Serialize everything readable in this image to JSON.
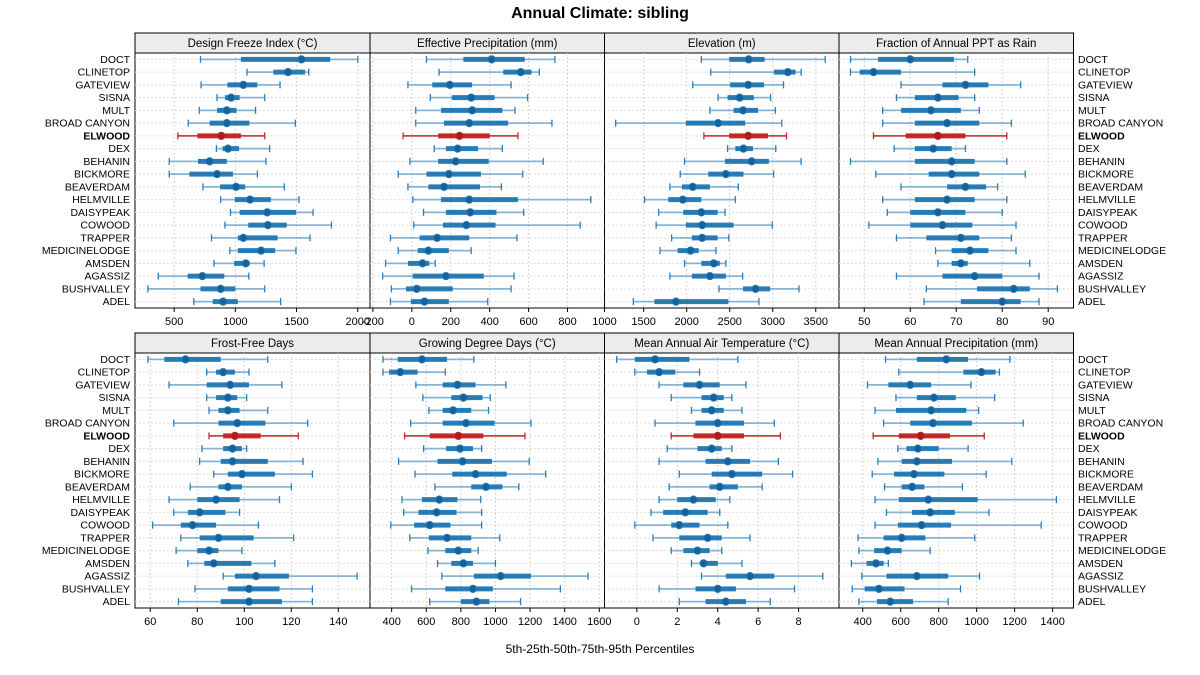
{
  "title": "Annual Climate: sibling",
  "caption": "5th-25th-50th-75th-95th Percentiles",
  "highlight_station": "ELWOOD",
  "stations": [
    "DOCT",
    "CLINETOP",
    "GATEVIEW",
    "SISNA",
    "MULT",
    "BROAD CANYON",
    "ELWOOD",
    "DEX",
    "BEHANIN",
    "BICKMORE",
    "BEAVERDAM",
    "HELMVILLE",
    "DAISYPEAK",
    "COWOOD",
    "TRAPPER",
    "MEDICINELODGE",
    "AMSDEN",
    "AGASSIZ",
    "BUSHVALLEY",
    "ADEL"
  ],
  "colors": {
    "normal": "#1f77b4",
    "highlight": "#c32222",
    "grid": "#c6c6c6",
    "strip_bg": "#ececec",
    "border": "#000000",
    "text": "#000000"
  },
  "chart_data": [
    {
      "type": "dot-interval",
      "title": "Design Freeze Index (°C)",
      "row": 0,
      "col": 0,
      "xlim": [
        180,
        2100
      ],
      "ticks": [
        500,
        1000,
        1500,
        2000
      ],
      "percentiles": [
        "5th",
        "25th",
        "50th",
        "75th",
        "95th"
      ],
      "values": [
        [
          715,
          1045,
          1540,
          1775,
          2000
        ],
        [
          1095,
          1310,
          1430,
          1570,
          1600
        ],
        [
          720,
          935,
          1065,
          1180,
          1365
        ],
        [
          850,
          915,
          965,
          1035,
          1240
        ],
        [
          705,
          850,
          930,
          1010,
          1165
        ],
        [
          615,
          790,
          930,
          1115,
          1490
        ],
        [
          530,
          690,
          885,
          1045,
          1240
        ],
        [
          845,
          895,
          940,
          1030,
          1280
        ],
        [
          460,
          695,
          790,
          930,
          1250
        ],
        [
          460,
          625,
          850,
          980,
          1180
        ],
        [
          735,
          875,
          1005,
          1080,
          1400
        ],
        [
          880,
          995,
          1120,
          1290,
          1520
        ],
        [
          960,
          1035,
          1260,
          1495,
          1635
        ],
        [
          915,
          1105,
          1265,
          1420,
          1785
        ],
        [
          805,
          1020,
          1065,
          1345,
          1610
        ],
        [
          955,
          1020,
          1210,
          1325,
          1495
        ],
        [
          825,
          990,
          1085,
          1115,
          1235
        ],
        [
          370,
          610,
          730,
          910,
          1110
        ],
        [
          285,
          715,
          880,
          1000,
          1240
        ],
        [
          660,
          815,
          900,
          1020,
          1370
        ]
      ]
    },
    {
      "type": "dot-interval",
      "title": "Effective Precipitation (mm)",
      "row": 0,
      "col": 1,
      "xlim": [
        -215,
        990
      ],
      "ticks": [
        -200,
        0,
        200,
        400,
        600,
        800,
        1000
      ],
      "values": [
        [
          75,
          265,
          410,
          580,
          735
        ],
        [
          140,
          470,
          560,
          615,
          655
        ],
        [
          -20,
          105,
          195,
          310,
          510
        ],
        [
          95,
          205,
          305,
          425,
          595
        ],
        [
          20,
          150,
          310,
          465,
          530
        ],
        [
          20,
          165,
          295,
          495,
          720
        ],
        [
          -45,
          135,
          245,
          400,
          545
        ],
        [
          115,
          175,
          235,
          340,
          465
        ],
        [
          -10,
          135,
          225,
          395,
          675
        ],
        [
          -70,
          75,
          190,
          355,
          570
        ],
        [
          -20,
          85,
          165,
          350,
          460
        ],
        [
          5,
          150,
          295,
          545,
          920
        ],
        [
          60,
          175,
          300,
          435,
          575
        ],
        [
          10,
          160,
          280,
          430,
          865
        ],
        [
          -110,
          40,
          130,
          295,
          540
        ],
        [
          -70,
          30,
          85,
          190,
          305
        ],
        [
          -135,
          -20,
          55,
          90,
          120
        ],
        [
          -150,
          5,
          175,
          370,
          525
        ],
        [
          -105,
          -30,
          25,
          210,
          510
        ],
        [
          -110,
          -5,
          65,
          190,
          390
        ]
      ]
    },
    {
      "type": "dot-interval",
      "title": "Elevation (m)",
      "row": 0,
      "col": 2,
      "xlim": [
        1045,
        3770
      ],
      "ticks": [
        1500,
        2000,
        2500,
        3000,
        3500
      ],
      "values": [
        [
          2170,
          2495,
          2720,
          2905,
          3610
        ],
        [
          2280,
          3015,
          3175,
          3265,
          3330
        ],
        [
          2070,
          2505,
          2715,
          2900,
          3125
        ],
        [
          2365,
          2475,
          2615,
          2780,
          2975
        ],
        [
          2270,
          2545,
          2655,
          2830,
          3030
        ],
        [
          1175,
          1990,
          2365,
          2680,
          3105
        ],
        [
          2200,
          2495,
          2715,
          2945,
          3160
        ],
        [
          2475,
          2565,
          2660,
          2770,
          3035
        ],
        [
          1975,
          2445,
          2755,
          2955,
          3330
        ],
        [
          1925,
          2250,
          2455,
          2660,
          3010
        ],
        [
          1805,
          1945,
          2070,
          2270,
          2600
        ],
        [
          1510,
          1785,
          1955,
          2170,
          2565
        ],
        [
          1675,
          1960,
          2170,
          2360,
          2445
        ],
        [
          1645,
          1990,
          2180,
          2545,
          2995
        ],
        [
          1825,
          2060,
          2180,
          2360,
          2490
        ],
        [
          1690,
          1895,
          2045,
          2140,
          2340
        ],
        [
          1975,
          2170,
          2315,
          2385,
          2455
        ],
        [
          1805,
          2060,
          2270,
          2455,
          2650
        ],
        [
          2375,
          2655,
          2800,
          2970,
          3305
        ],
        [
          1380,
          1625,
          1875,
          2485,
          2840
        ]
      ]
    },
    {
      "type": "dot-interval",
      "title": "Fraction of Annual PPT as Rain",
      "row": 0,
      "col": 3,
      "xlim": [
        44.5,
        95.5
      ],
      "ticks": [
        50,
        60,
        70,
        80,
        90
      ],
      "values": [
        [
          47,
          53,
          60,
          69.5,
          72.5
        ],
        [
          47,
          49,
          52,
          58,
          74
        ],
        [
          58,
          67,
          72,
          77,
          84
        ],
        [
          57,
          61,
          66,
          70.5,
          74
        ],
        [
          54,
          58,
          64.5,
          71,
          75
        ],
        [
          54,
          61,
          68,
          75,
          82
        ],
        [
          52,
          59,
          66,
          72,
          81
        ],
        [
          56.5,
          61,
          65,
          69,
          72
        ],
        [
          47,
          61,
          69,
          74,
          81
        ],
        [
          52.5,
          64,
          69,
          75,
          85
        ],
        [
          58,
          68,
          72,
          76.5,
          79
        ],
        [
          54,
          61,
          68,
          74,
          81
        ],
        [
          55,
          60,
          66,
          72,
          80
        ],
        [
          51,
          60,
          67,
          73.5,
          83
        ],
        [
          57,
          63.5,
          71,
          75,
          82
        ],
        [
          65.5,
          69,
          73,
          77,
          83
        ],
        [
          66,
          69,
          71,
          72.5,
          86
        ],
        [
          57,
          67,
          74,
          80,
          88
        ],
        [
          63.5,
          74.5,
          82.5,
          86,
          92
        ],
        [
          63,
          71,
          80,
          84,
          88
        ]
      ]
    },
    {
      "type": "dot-interval",
      "title": "Frost-Free Days",
      "row": 1,
      "col": 0,
      "xlim": [
        53.5,
        153.5
      ],
      "ticks": [
        60,
        80,
        100,
        120,
        140
      ],
      "values": [
        [
          59,
          66,
          75,
          90,
          110
        ],
        [
          84,
          88,
          91,
          96,
          102
        ],
        [
          68,
          84,
          94,
          102,
          116
        ],
        [
          84,
          88,
          93,
          97,
          101
        ],
        [
          85,
          89,
          93,
          98,
          110
        ],
        [
          70,
          89,
          97,
          109,
          127
        ],
        [
          85,
          91,
          96,
          107,
          123
        ],
        [
          82,
          91,
          95,
          99,
          101
        ],
        [
          81,
          90,
          95,
          110,
          125
        ],
        [
          87,
          93,
          99,
          113,
          129
        ],
        [
          77,
          89,
          93,
          99,
          120
        ],
        [
          68,
          80,
          88,
          98,
          115
        ],
        [
          70,
          76,
          81,
          92,
          98
        ],
        [
          61,
          73,
          78,
          88,
          106
        ],
        [
          73,
          81,
          89,
          104,
          121
        ],
        [
          71,
          80,
          85,
          89,
          99
        ],
        [
          76,
          83,
          87,
          103,
          113
        ],
        [
          91,
          96,
          105,
          119,
          148
        ],
        [
          79,
          93,
          102,
          115,
          129
        ],
        [
          72,
          90,
          102,
          116,
          129
        ]
      ]
    },
    {
      "type": "dot-interval",
      "title": "Growing Degree Days (°C)",
      "row": 1,
      "col": 1,
      "xlim": [
        275,
        1630
      ],
      "ticks": [
        400,
        600,
        800,
        1000,
        1200,
        1400,
        1600
      ],
      "values": [
        [
          350,
          435,
          575,
          720,
          875
        ],
        [
          350,
          385,
          450,
          550,
          710
        ],
        [
          540,
          695,
          780,
          885,
          1060
        ],
        [
          580,
          745,
          815,
          925,
          970
        ],
        [
          615,
          695,
          755,
          860,
          960
        ],
        [
          510,
          695,
          830,
          995,
          1205
        ],
        [
          475,
          620,
          785,
          930,
          1170
        ],
        [
          585,
          715,
          795,
          870,
          920
        ],
        [
          440,
          665,
          810,
          980,
          1195
        ],
        [
          535,
          750,
          885,
          1065,
          1290
        ],
        [
          650,
          860,
          945,
          1040,
          1135
        ],
        [
          460,
          575,
          675,
          780,
          915
        ],
        [
          470,
          555,
          660,
          775,
          920
        ],
        [
          395,
          530,
          620,
          740,
          920
        ],
        [
          505,
          615,
          720,
          860,
          1025
        ],
        [
          610,
          710,
          785,
          860,
          900
        ],
        [
          665,
          745,
          815,
          870,
          1000
        ],
        [
          690,
          875,
          1030,
          1205,
          1535
        ],
        [
          515,
          710,
          870,
          985,
          1375
        ],
        [
          620,
          800,
          890,
          965,
          1145
        ]
      ]
    },
    {
      "type": "dot-interval",
      "title": "Mean Annual Air Temperature (°C)",
      "row": 1,
      "col": 2,
      "xlim": [
        -1.6,
        10
      ],
      "ticks": [
        0,
        2,
        4,
        6,
        8
      ],
      "values": [
        [
          -1,
          -0.1,
          0.9,
          2.6,
          5
        ],
        [
          -0.1,
          0.5,
          1.1,
          1.9,
          3.1
        ],
        [
          1.1,
          2.3,
          3.1,
          4.1,
          5.4
        ],
        [
          1.7,
          3.2,
          3.8,
          4.3,
          4.7
        ],
        [
          2.7,
          3.2,
          3.7,
          4.3,
          5.2
        ],
        [
          0.9,
          2.9,
          4,
          5.3,
          6.8
        ],
        [
          1.7,
          2.8,
          4,
          5.3,
          7.1
        ],
        [
          1.5,
          3,
          3.7,
          4.2,
          4.7
        ],
        [
          1.1,
          3.4,
          4.5,
          5.6,
          7
        ],
        [
          2.1,
          3.7,
          4.7,
          6.2,
          7.7
        ],
        [
          1.6,
          3.6,
          4.1,
          5,
          6.2
        ],
        [
          1.1,
          2,
          2.8,
          3.9,
          4.6
        ],
        [
          0.7,
          1.3,
          2.4,
          3.5,
          4.1
        ],
        [
          -0.1,
          1.7,
          2.1,
          3.1,
          4.5
        ],
        [
          0.8,
          2.1,
          3.5,
          4.2,
          5.6
        ],
        [
          1.7,
          2.3,
          3,
          3.6,
          4.2
        ],
        [
          2.7,
          3.2,
          3.3,
          4,
          5.2
        ],
        [
          3.2,
          4.4,
          5.6,
          6.8,
          9.2
        ],
        [
          1.1,
          2.9,
          4,
          4.9,
          7.8
        ],
        [
          2.1,
          3.4,
          4.4,
          5.4,
          6.6
        ]
      ]
    },
    {
      "type": "dot-interval",
      "title": "Mean Annual Precipitation (mm)",
      "row": 1,
      "col": 3,
      "xlim": [
        275,
        1510
      ],
      "ticks": [
        400,
        600,
        800,
        1000,
        1200,
        1400
      ],
      "values": [
        [
          520,
          685,
          840,
          955,
          1175
        ],
        [
          590,
          930,
          1025,
          1100,
          1120
        ],
        [
          425,
          535,
          650,
          760,
          970
        ],
        [
          575,
          685,
          775,
          890,
          1095
        ],
        [
          465,
          575,
          760,
          945,
          1010
        ],
        [
          510,
          650,
          770,
          975,
          1245
        ],
        [
          455,
          590,
          705,
          860,
          1040
        ],
        [
          585,
          630,
          690,
          800,
          955
        ],
        [
          480,
          605,
          685,
          870,
          1185
        ],
        [
          450,
          565,
          670,
          830,
          1050
        ],
        [
          515,
          605,
          660,
          725,
          925
        ],
        [
          465,
          590,
          745,
          1005,
          1420
        ],
        [
          525,
          660,
          755,
          885,
          1065
        ],
        [
          465,
          585,
          710,
          865,
          1340
        ],
        [
          375,
          510,
          605,
          730,
          990
        ],
        [
          380,
          460,
          530,
          605,
          755
        ],
        [
          340,
          420,
          470,
          510,
          535
        ],
        [
          395,
          525,
          685,
          850,
          1015
        ],
        [
          345,
          410,
          485,
          620,
          915
        ],
        [
          380,
          475,
          545,
          665,
          850
        ]
      ]
    }
  ]
}
